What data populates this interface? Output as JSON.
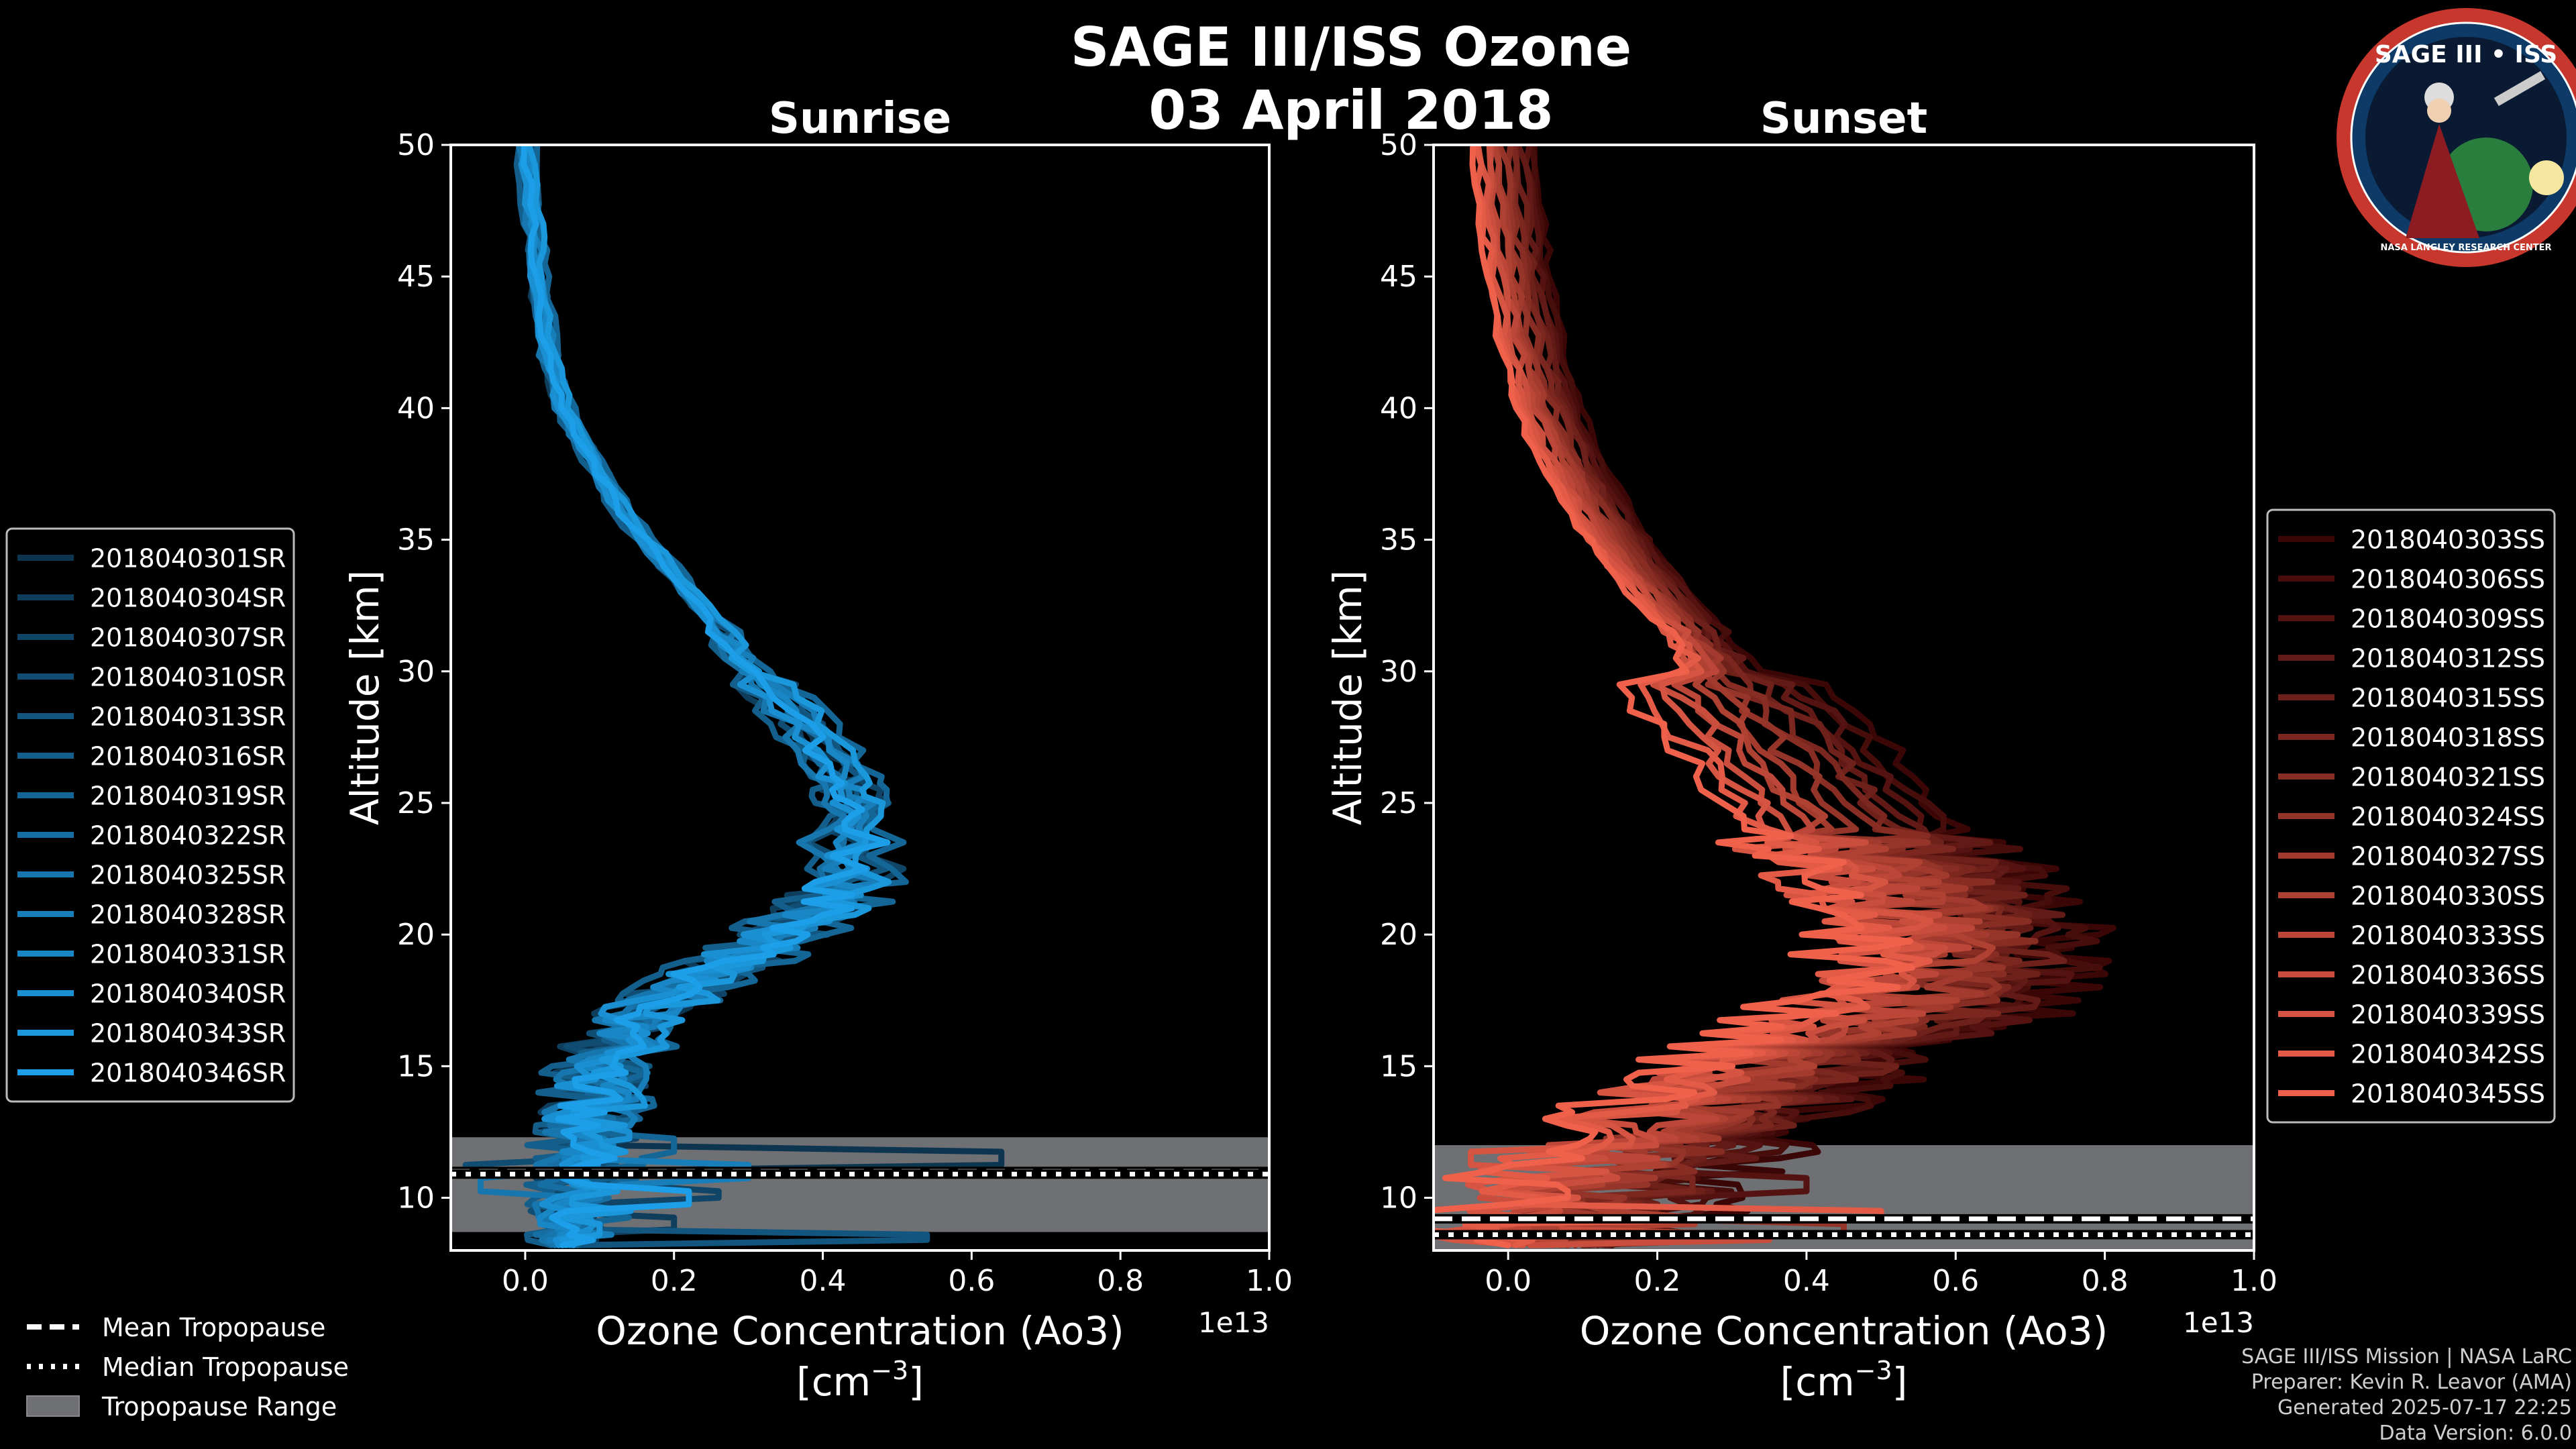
{
  "figure": {
    "title_line1": "SAGE III/ISS Ozone",
    "title_line2": "03 April 2018"
  },
  "chart_data": [
    {
      "type": "line",
      "title": "Sunrise",
      "xlabel": "Ozone Concentration (Ao3)",
      "xunit": "[cm",
      "xunit_exp": "−3",
      "xunit_close": "]",
      "ylabel": "Altitude [km]",
      "offset_text": "1e13",
      "xlim": [
        -0.1,
        1.0
      ],
      "ylim": [
        8,
        50
      ],
      "xticks": [
        0.0,
        0.2,
        0.4,
        0.6,
        0.8,
        1.0
      ],
      "xtick_labels": [
        "0.0",
        "0.2",
        "0.4",
        "0.6",
        "0.8",
        "1.0"
      ],
      "yticks": [
        10,
        15,
        20,
        25,
        30,
        35,
        40,
        45,
        50
      ],
      "ytick_labels": [
        "10",
        "15",
        "20",
        "25",
        "30",
        "35",
        "40",
        "45",
        "50"
      ],
      "tropopause": {
        "mean": 11.0,
        "median": 10.9,
        "range": [
          8.7,
          12.3
        ]
      },
      "legend_position": "left",
      "color_dark": "#0e3550",
      "color_light": "#1c9fe8",
      "base_profile": [
        [
          50,
          0.0
        ],
        [
          47,
          0.01
        ],
        [
          45,
          0.015
        ],
        [
          42,
          0.03
        ],
        [
          40,
          0.05
        ],
        [
          38,
          0.09
        ],
        [
          36,
          0.13
        ],
        [
          34,
          0.19
        ],
        [
          32,
          0.25
        ],
        [
          30,
          0.3
        ],
        [
          28,
          0.37
        ],
        [
          26,
          0.42
        ],
        [
          25,
          0.44
        ],
        [
          24,
          0.44
        ],
        [
          22,
          0.43
        ],
        [
          21,
          0.4
        ],
        [
          20,
          0.34
        ],
        [
          19,
          0.28
        ],
        [
          18,
          0.21
        ],
        [
          17,
          0.15
        ],
        [
          16,
          0.12
        ],
        [
          15,
          0.1
        ],
        [
          14,
          0.09
        ],
        [
          13,
          0.08
        ],
        [
          12,
          0.08
        ],
        [
          11,
          0.07
        ],
        [
          10,
          0.07
        ],
        [
          9,
          0.06
        ],
        [
          8.2,
          0.05
        ]
      ],
      "series": [
        {
          "name": "2018040301SR",
          "shift": 0.01,
          "spike_alt": 11.5,
          "spike_val": 0.64
        },
        {
          "name": "2018040304SR",
          "shift": -0.02,
          "spike_alt": 9.0,
          "spike_val": 0.2
        },
        {
          "name": "2018040307SR",
          "shift": 0.03,
          "spike_alt": 10.2,
          "spike_val": 0.26
        },
        {
          "name": "2018040310SR",
          "shift": -0.01,
          "spike_alt": 11.2,
          "spike_val": -0.08
        },
        {
          "name": "2018040313SR",
          "shift": 0.02,
          "spike_alt": 8.5,
          "spike_val": 0.54
        },
        {
          "name": "2018040316SR",
          "shift": -0.03,
          "spike_alt": 10.8,
          "spike_val": 0.12
        },
        {
          "name": "2018040319SR",
          "shift": 0.04,
          "spike_alt": 12.0,
          "spike_val": 0.2
        },
        {
          "name": "2018040322SR",
          "shift": 0.0,
          "spike_alt": 9.6,
          "spike_val": 0.08
        },
        {
          "name": "2018040325SR",
          "shift": -0.02,
          "spike_alt": 10.5,
          "spike_val": -0.06
        },
        {
          "name": "2018040328SR",
          "shift": 0.02,
          "spike_alt": 11.0,
          "spike_val": 0.3
        },
        {
          "name": "2018040331SR",
          "shift": 0.01,
          "spike_alt": 9.2,
          "spike_val": 0.02
        },
        {
          "name": "2018040340SR",
          "shift": -0.01,
          "spike_alt": 12.4,
          "spike_val": 0.14
        },
        {
          "name": "2018040343SR",
          "shift": 0.03,
          "spike_alt": 8.8,
          "spike_val": 0.1
        },
        {
          "name": "2018040346SR",
          "shift": 0.0,
          "spike_alt": 10.0,
          "spike_val": 0.22
        }
      ]
    },
    {
      "type": "line",
      "title": "Sunset",
      "xlabel": "Ozone Concentration (Ao3)",
      "xunit": "[cm",
      "xunit_exp": "−3",
      "xunit_close": "]",
      "ylabel": "Altitude [km]",
      "offset_text": "1e13",
      "xlim": [
        -0.1,
        1.0
      ],
      "ylim": [
        8,
        50
      ],
      "xticks": [
        0.0,
        0.2,
        0.4,
        0.6,
        0.8,
        1.0
      ],
      "xtick_labels": [
        "0.0",
        "0.2",
        "0.4",
        "0.6",
        "0.8",
        "1.0"
      ],
      "yticks": [
        10,
        15,
        20,
        25,
        30,
        35,
        40,
        45,
        50
      ],
      "ytick_labels": [
        "10",
        "15",
        "20",
        "25",
        "30",
        "35",
        "40",
        "45",
        "50"
      ],
      "tropopause": {
        "mean": 9.2,
        "median": 8.6,
        "range": [
          8.0,
          12.0
        ]
      },
      "legend_position": "right",
      "color_dark": "#3a0606",
      "color_light": "#f0614c",
      "base_profile": [
        [
          50,
          0.0
        ],
        [
          47,
          0.01
        ],
        [
          45,
          0.02
        ],
        [
          42,
          0.04
        ],
        [
          40,
          0.06
        ],
        [
          38,
          0.09
        ],
        [
          36,
          0.13
        ],
        [
          34,
          0.18
        ],
        [
          32,
          0.24
        ],
        [
          30,
          0.29
        ],
        [
          28,
          0.36
        ],
        [
          26,
          0.42
        ],
        [
          24,
          0.48
        ],
        [
          23,
          0.52
        ],
        [
          22,
          0.56
        ],
        [
          21,
          0.6
        ],
        [
          20,
          0.62
        ],
        [
          19,
          0.62
        ],
        [
          18,
          0.6
        ],
        [
          17,
          0.55
        ],
        [
          16,
          0.48
        ],
        [
          15,
          0.4
        ],
        [
          14,
          0.33
        ],
        [
          13,
          0.27
        ],
        [
          12,
          0.22
        ],
        [
          11,
          0.17
        ],
        [
          10,
          0.13
        ],
        [
          9,
          0.1
        ],
        [
          8.2,
          0.08
        ]
      ],
      "series": [
        {
          "name": "2018040303SS",
          "shift": 0.12,
          "spike_alt": 8.6,
          "spike_val": -0.06
        },
        {
          "name": "2018040306SS",
          "shift": 0.1,
          "spike_alt": 9.0,
          "spike_val": 0.05
        },
        {
          "name": "2018040309SS",
          "shift": 0.08,
          "spike_alt": 10.5,
          "spike_val": 0.4
        },
        {
          "name": "2018040312SS",
          "shift": 0.06,
          "spike_alt": 9.5,
          "spike_val": 0.2
        },
        {
          "name": "2018040315SS",
          "shift": 0.04,
          "spike_alt": 8.4,
          "spike_val": 0.3
        },
        {
          "name": "2018040318SS",
          "shift": 0.02,
          "spike_alt": 11.2,
          "spike_val": 0.15
        },
        {
          "name": "2018040321SS",
          "shift": 0.0,
          "spike_alt": 9.8,
          "spike_val": 0.1
        },
        {
          "name": "2018040324SS",
          "shift": -0.02,
          "spike_alt": 8.8,
          "spike_val": 0.45
        },
        {
          "name": "2018040327SS",
          "shift": -0.04,
          "spike_alt": 10.0,
          "spike_val": 0.05
        },
        {
          "name": "2018040330SS",
          "shift": -0.06,
          "spike_alt": 9.2,
          "spike_val": 0.25
        },
        {
          "name": "2018040333SS",
          "shift": -0.08,
          "spike_alt": 10.8,
          "spike_val": 0.12
        },
        {
          "name": "2018040336SS",
          "shift": -0.1,
          "spike_alt": 8.5,
          "spike_val": 0.35
        },
        {
          "name": "2018040339SS",
          "shift": -0.12,
          "spike_alt": 11.5,
          "spike_val": -0.05
        },
        {
          "name": "2018040342SS",
          "shift": -0.14,
          "spike_alt": 9.4,
          "spike_val": 0.5
        },
        {
          "name": "2018040345SS",
          "shift": -0.16,
          "spike_alt": 10.2,
          "spike_val": 0.08
        }
      ]
    }
  ],
  "tropo_legend": {
    "mean": "Mean Tropopause",
    "median": "Median Tropopause",
    "range": "Tropopause Range"
  },
  "badge": {
    "text_top": "SAGE III • ISS",
    "text_bottom": "NASA LANGLEY RESEARCH CENTER"
  },
  "credits": {
    "line1": "SAGE III/ISS Mission | NASA LaRC",
    "line2": "Preparer: Kevin R. Leavor (AMA)",
    "line3": "Generated 2025-07-17 22:25",
    "line4": "Data Version: 6.0.0"
  }
}
